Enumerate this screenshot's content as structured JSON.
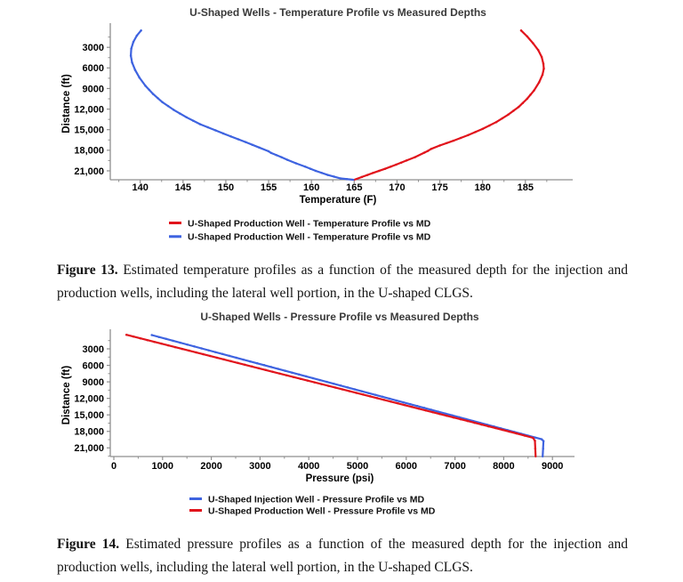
{
  "figure13": {
    "label": "Figure 13.",
    "text": " Estimated temperature profiles as a function of the measured depth for the injection and production wells, including the lateral well portion, in the U-shaped CLGS."
  },
  "figure14": {
    "label": "Figure 14.",
    "text": " Estimated pressure profiles as a function of the measured depth for the injection and production wells, including the lateral well portion, in the U-shaped CLGS."
  },
  "colors": {
    "red": "#e1141c",
    "blue": "#3e63e0",
    "axis": "#8f8f8f",
    "title": "#3a3a3a"
  },
  "chart_data": [
    {
      "id": "temperature-chart",
      "type": "line",
      "title": "U-Shaped Wells - Temperature Profile vs Measured Depths",
      "xlabel": "Temperature (F)",
      "ylabel": "Distance (ft)",
      "grid": false,
      "y_inverted": true,
      "legend_position": "bottom",
      "xlim": [
        136.5,
        189.7
      ],
      "ylim": [
        120,
        22300
      ],
      "x_ticks": [
        140,
        145,
        150,
        155,
        160,
        165,
        170,
        175,
        180,
        185
      ],
      "x_tick_labels": [
        "140",
        "145",
        "150",
        "155",
        "160",
        "165",
        "170",
        "175",
        "180",
        "185"
      ],
      "x_minor_step": 2.5,
      "y_ticks": [
        3000,
        6000,
        9000,
        12000,
        15000,
        18000,
        21000
      ],
      "y_tick_labels": [
        "3000",
        "6000",
        "9000",
        "12,000",
        "15,000",
        "18,000",
        "21,000"
      ],
      "y_minor_step": 1500,
      "series": [
        {
          "name": "U-Shaped Production Well - Temperature Profile vs MD",
          "color": "#e1141c",
          "points": [
            [
              184.5,
              550
            ],
            [
              185.2,
              1400
            ],
            [
              185.9,
              2400
            ],
            [
              186.5,
              3400
            ],
            [
              186.9,
              4400
            ],
            [
              187.1,
              5400
            ],
            [
              187.15,
              6100
            ],
            [
              187.0,
              7000
            ],
            [
              186.6,
              8100
            ],
            [
              186.0,
              9300
            ],
            [
              185.2,
              10500
            ],
            [
              184.2,
              11700
            ],
            [
              183.0,
              12800
            ],
            [
              181.6,
              13900
            ],
            [
              180.0,
              14900
            ],
            [
              178.3,
              15800
            ],
            [
              176.6,
              16600
            ],
            [
              175.0,
              17300
            ],
            [
              174.0,
              17800
            ],
            [
              173.6,
              18100
            ],
            [
              173.2,
              18350
            ],
            [
              172.1,
              19000
            ],
            [
              171.1,
              19500
            ],
            [
              169.9,
              20100
            ],
            [
              168.6,
              20700
            ],
            [
              167.2,
              21300
            ],
            [
              165.9,
              21900
            ],
            [
              165.0,
              22300
            ]
          ]
        },
        {
          "name": "U-Shaped Production Well - Temperature Profile vs MD",
          "color": "#3e63e0",
          "points": [
            [
              140.1,
              550
            ],
            [
              139.6,
              1300
            ],
            [
              139.2,
              2200
            ],
            [
              138.95,
              3200
            ],
            [
              138.9,
              4200
            ],
            [
              139.05,
              5200
            ],
            [
              139.4,
              6300
            ],
            [
              139.9,
              7400
            ],
            [
              140.6,
              8600
            ],
            [
              141.5,
              9800
            ],
            [
              142.6,
              11000
            ],
            [
              143.9,
              12100
            ],
            [
              145.4,
              13200
            ],
            [
              147.0,
              14200
            ],
            [
              148.8,
              15100
            ],
            [
              150.6,
              16000
            ],
            [
              152.3,
              16800
            ],
            [
              153.9,
              17600
            ],
            [
              155.0,
              18150
            ],
            [
              155.3,
              18400
            ],
            [
              156.5,
              19000
            ],
            [
              157.2,
              19400
            ],
            [
              158.2,
              19900
            ],
            [
              159.3,
              20400
            ],
            [
              160.5,
              21000
            ],
            [
              161.9,
              21600
            ],
            [
              163.4,
              22100
            ],
            [
              164.9,
              22300
            ]
          ]
        }
      ]
    },
    {
      "id": "pressure-chart",
      "type": "line",
      "title": "U-Shaped Wells - Pressure Profile vs Measured Depths",
      "xlabel": "Pressure (psi)",
      "ylabel": "Distance (ft)",
      "grid": false,
      "y_inverted": true,
      "legend_position": "bottom",
      "xlim": [
        -73,
        9343
      ],
      "ylim": [
        250,
        22570
      ],
      "x_ticks": [
        0,
        1000,
        2000,
        3000,
        4000,
        5000,
        6000,
        7000,
        8000,
        9000
      ],
      "x_tick_labels": [
        "0",
        "1000",
        "2000",
        "3000",
        "4000",
        "5000",
        "6000",
        "7000",
        "8000",
        "9000"
      ],
      "x_minor_step": 500,
      "y_ticks": [
        3000,
        6000,
        9000,
        12000,
        15000,
        18000,
        21000
      ],
      "y_tick_labels": [
        "3000",
        "6000",
        "9000",
        "12,000",
        "15,000",
        "18,000",
        "21,000"
      ],
      "y_minor_step": 1500,
      "series": [
        {
          "name": "U-Shaped Injection Well - Pressure Profile vs MD",
          "color": "#3e63e0",
          "points": [
            [
              780,
              500
            ],
            [
              1800,
              2920
            ],
            [
              2800,
              5290
            ],
            [
              3800,
              7655
            ],
            [
              4800,
              10020
            ],
            [
              5800,
              12390
            ],
            [
              6800,
              14760
            ],
            [
              7800,
              17125
            ],
            [
              8780,
              19440
            ],
            [
              8815,
              19750
            ],
            [
              8800,
              22570
            ]
          ]
        },
        {
          "name": "U-Shaped Production Well - Pressure Profile vs MD",
          "color": "#e1141c",
          "points": [
            [
              260,
              450
            ],
            [
              1260,
              2690
            ],
            [
              2260,
              4930
            ],
            [
              3260,
              7170
            ],
            [
              4260,
              9400
            ],
            [
              5260,
              11640
            ],
            [
              6260,
              13880
            ],
            [
              7260,
              16120
            ],
            [
              8260,
              18360
            ],
            [
              8600,
              19170
            ],
            [
              8640,
              19700
            ],
            [
              8655,
              22570
            ]
          ]
        }
      ]
    }
  ]
}
